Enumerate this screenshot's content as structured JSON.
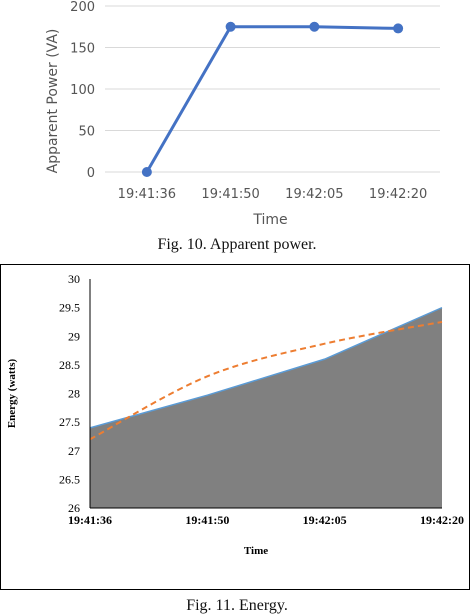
{
  "chart_data": [
    {
      "type": "line",
      "categories": [
        "19:41:36",
        "19:41:50",
        "19:42:05",
        "19:42:20"
      ],
      "series": [
        {
          "values": [
            0,
            175,
            175,
            173
          ]
        }
      ],
      "xlabel": "Time",
      "ylabel": "Apparent Power (VA)",
      "ylim": [
        0,
        200
      ],
      "yticks": [
        0,
        50,
        100,
        150,
        200
      ],
      "grid": true,
      "colors": {
        "line": "#4472c4",
        "grid": "#d9d9d9"
      }
    },
    {
      "type": "area",
      "categories": [
        "19:41:36",
        "19:41:50",
        "19:42:05",
        "19:42:20"
      ],
      "series": [
        {
          "kind": "area",
          "values": [
            27.4,
            27.97,
            28.6,
            29.5
          ]
        },
        {
          "kind": "trendline",
          "values": [
            27.2,
            28.3,
            28.87,
            29.25
          ]
        }
      ],
      "xlabel": "Time",
      "ylabel": "Energy (watts)",
      "ylim": [
        26,
        30
      ],
      "yticks": [
        "26",
        "26.5",
        "27",
        "27.5",
        "28",
        "28.5",
        "29",
        "29.5",
        "30"
      ],
      "grid": false,
      "colors": {
        "area": "#808080",
        "area_edge": "#5b9bd5",
        "trend": "#ed7d31"
      }
    }
  ],
  "captions": {
    "fig10": "Fig. 10. Apparent power.",
    "fig11": "Fig. 11. Energy."
  }
}
